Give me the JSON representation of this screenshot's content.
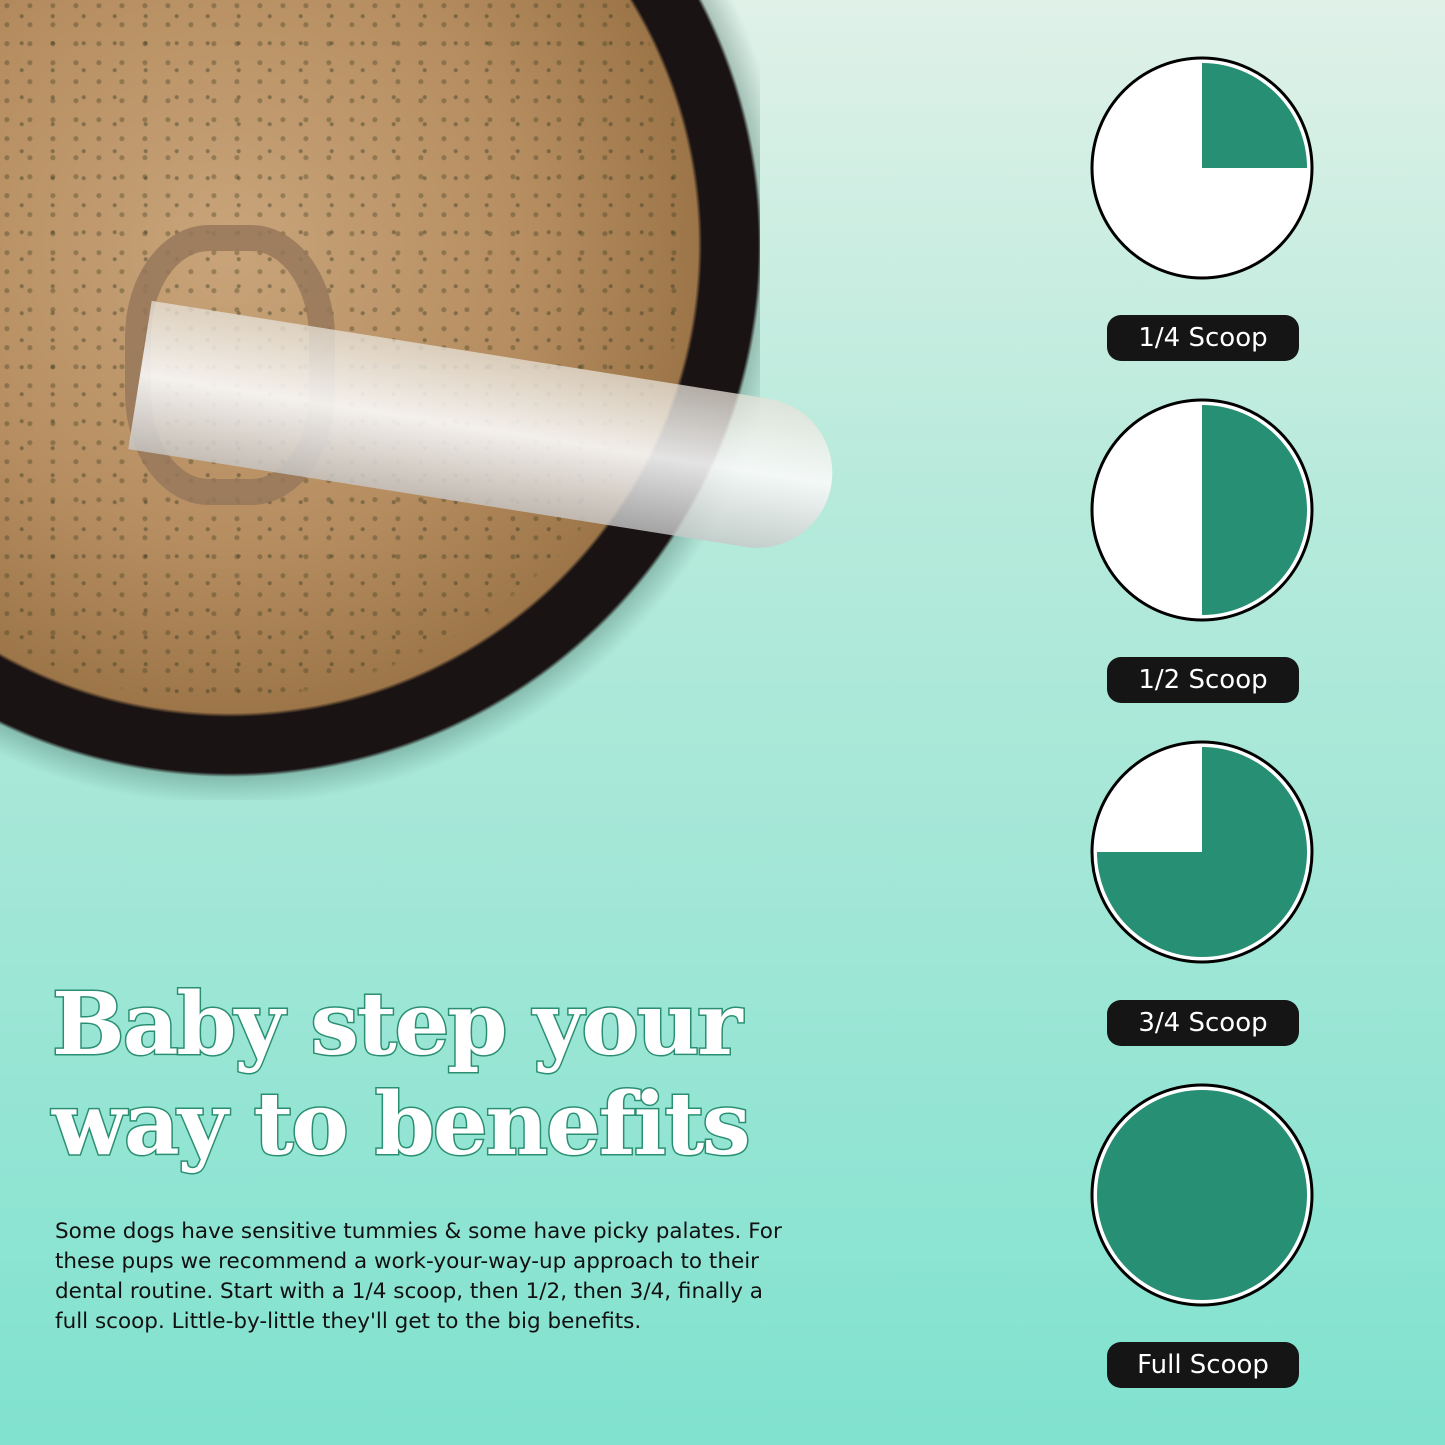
{
  "headline": {
    "line1": "Baby step your",
    "line2": "way to benefits"
  },
  "body": "Some dogs have sensitive tummies & some have picky palates. For these pups we recommend a work-your-way-up approach to their dental routine. Start with a 1/4 scoop, then 1/2, then 3/4, finally a full scoop. Little-by-little they'll get to the big benefits.",
  "colors": {
    "fill": "#278f74",
    "empty": "#ffffff",
    "ring": "#000000",
    "pill": "#151515"
  },
  "steps": [
    {
      "label": "1/4 Scoop",
      "fraction": 0.25
    },
    {
      "label": "1/2 Scoop",
      "fraction": 0.5
    },
    {
      "label": "3/4 Scoop",
      "fraction": 0.75
    },
    {
      "label": "Full Scoop",
      "fraction": 1
    }
  ]
}
